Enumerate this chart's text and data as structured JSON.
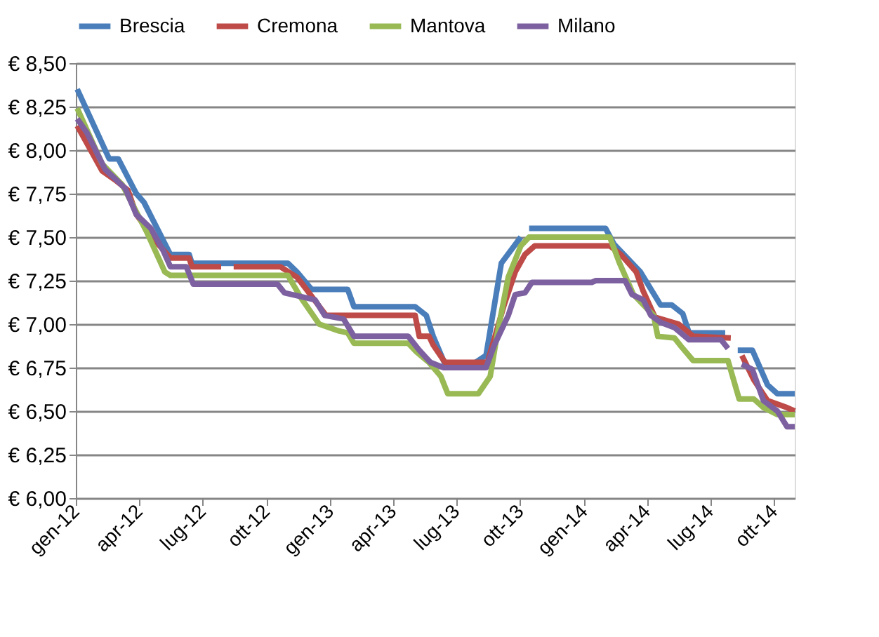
{
  "chart_data": {
    "type": "line",
    "legend": "top",
    "grid": "y",
    "line_style": "solid",
    "marker": "none",
    "xlim": [
      "2012-01-01",
      "2014-10-31"
    ],
    "xticks": [
      {
        "value": "2012-01-01",
        "label": "gen-12"
      },
      {
        "value": "2012-04-01",
        "label": "apr-12"
      },
      {
        "value": "2012-07-01",
        "label": "lug-12"
      },
      {
        "value": "2012-10-01",
        "label": "ott-12"
      },
      {
        "value": "2013-01-01",
        "label": "gen-13"
      },
      {
        "value": "2013-04-01",
        "label": "apr-13"
      },
      {
        "value": "2013-07-01",
        "label": "lug-13"
      },
      {
        "value": "2013-10-01",
        "label": "ott-13"
      },
      {
        "value": "2014-01-01",
        "label": "gen-14"
      },
      {
        "value": "2014-04-01",
        "label": "apr-14"
      },
      {
        "value": "2014-07-01",
        "label": "lug-14"
      },
      {
        "value": "2014-10-01",
        "label": "ott-14"
      }
    ],
    "ylim": [
      6.0,
      8.5
    ],
    "yticks": [
      {
        "value": 6.0,
        "label": "€ 6,00"
      },
      {
        "value": 6.25,
        "label": "€ 6,25"
      },
      {
        "value": 6.5,
        "label": "€ 6,50"
      },
      {
        "value": 6.75,
        "label": "€ 6,75"
      },
      {
        "value": 7.0,
        "label": "€ 7,00"
      },
      {
        "value": 7.25,
        "label": "€ 7,25"
      },
      {
        "value": 7.5,
        "label": "€ 7,50"
      },
      {
        "value": 7.75,
        "label": "€ 7,75"
      },
      {
        "value": 8.0,
        "label": "€ 8,00"
      },
      {
        "value": 8.25,
        "label": "€ 8,25"
      },
      {
        "value": 8.5,
        "label": "€ 8,50"
      }
    ],
    "series": [
      {
        "name": "Brescia",
        "color": "#4a7ebb",
        "x": [
          "2012-01-03",
          "2012-02-18",
          "2012-03-02",
          "2012-03-28",
          "2012-04-08",
          "2012-05-16",
          "2012-06-12",
          "2012-06-16",
          "2012-11-01",
          "2012-11-14",
          "2012-12-05",
          "2013-01-26",
          "2013-02-04",
          "2013-05-03",
          "2013-05-19",
          "2013-05-29",
          "2013-06-15",
          "2013-07-25",
          "2013-08-13",
          "2013-09-04",
          "2013-10-02",
          "2013-10-08",
          "2013-10-14",
          "2014-02-01",
          "2014-02-13",
          "2014-03-23",
          "2014-04-21",
          "2014-05-07",
          "2014-05-23",
          "2014-06-01",
          "2014-07-23",
          "2014-08-01",
          "2014-08-10",
          "2014-08-31",
          "2014-09-22",
          "2014-10-06",
          "2014-10-31"
        ],
        "values": [
          8.35,
          7.95,
          7.95,
          7.75,
          7.7,
          7.4,
          7.4,
          7.35,
          7.35,
          7.3,
          7.2,
          7.2,
          7.1,
          7.1,
          7.05,
          6.93,
          6.77,
          6.77,
          6.82,
          7.35,
          7.5,
          null,
          7.55,
          7.55,
          7.46,
          7.3,
          7.11,
          7.11,
          7.06,
          6.95,
          6.95,
          null,
          6.85,
          6.85,
          6.65,
          6.6,
          6.6
        ]
      },
      {
        "name": "Cremona",
        "color": "#be4b48",
        "x": [
          "2012-01-03",
          "2012-02-08",
          "2012-02-26",
          "2012-03-16",
          "2012-03-28",
          "2012-04-26",
          "2012-05-16",
          "2012-06-12",
          "2012-06-16",
          "2012-07-28",
          "2012-08-05",
          "2012-08-15",
          "2012-10-21",
          "2012-11-14",
          "2012-11-20",
          "2012-12-26",
          "2013-05-03",
          "2013-05-09",
          "2013-05-23",
          "2013-05-29",
          "2013-06-15",
          "2013-08-15",
          "2013-08-23",
          "2013-09-08",
          "2013-09-24",
          "2013-10-08",
          "2013-10-22",
          "2014-02-07",
          "2014-02-23",
          "2014-03-17",
          "2014-03-27",
          "2014-04-13",
          "2014-05-17",
          "2014-06-07",
          "2014-07-31",
          "2014-08-08",
          "2014-08-16",
          "2014-09-02",
          "2014-09-22",
          "2014-10-20",
          "2014-10-31"
        ],
        "values": [
          8.14,
          7.88,
          7.83,
          7.77,
          7.63,
          7.47,
          7.38,
          7.38,
          7.33,
          7.33,
          null,
          7.33,
          7.33,
          7.27,
          7.24,
          7.05,
          7.05,
          6.93,
          6.93,
          6.88,
          6.78,
          6.78,
          6.89,
          7.11,
          7.3,
          7.4,
          7.45,
          7.45,
          7.4,
          7.3,
          7.19,
          7.04,
          7.0,
          6.93,
          6.92,
          null,
          6.82,
          6.68,
          6.56,
          6.52,
          6.5
        ]
      },
      {
        "name": "Mantova",
        "color": "#98b954",
        "x": [
          "2012-01-03",
          "2012-02-08",
          "2012-03-08",
          "2012-04-12",
          "2012-05-08",
          "2012-05-16",
          "2012-11-01",
          "2012-11-20",
          "2012-12-16",
          "2013-01-14",
          "2013-01-26",
          "2013-02-04",
          "2013-04-23",
          "2013-05-05",
          "2013-05-23",
          "2013-06-09",
          "2013-06-19",
          "2013-08-02",
          "2013-08-19",
          "2013-08-29",
          "2013-09-14",
          "2013-10-02",
          "2013-10-14",
          "2014-02-07",
          "2014-02-21",
          "2014-03-13",
          "2014-04-11",
          "2014-04-17",
          "2014-05-11",
          "2014-05-21",
          "2014-06-07",
          "2014-07-27",
          "2014-08-12",
          "2014-09-02",
          "2014-09-16",
          "2014-10-06",
          "2014-10-31"
        ],
        "values": [
          8.24,
          7.92,
          7.8,
          7.53,
          7.3,
          7.28,
          7.28,
          7.15,
          7.0,
          6.96,
          6.95,
          6.89,
          6.89,
          6.84,
          6.78,
          6.7,
          6.6,
          6.6,
          6.7,
          6.94,
          7.27,
          7.45,
          7.5,
          7.5,
          7.35,
          7.17,
          7.05,
          6.93,
          6.92,
          6.87,
          6.79,
          6.79,
          6.57,
          6.57,
          6.52,
          6.48,
          6.48
        ]
      },
      {
        "name": "Milano",
        "color": "#7d60a0",
        "x": [
          "2012-01-03",
          "2012-01-17",
          "2012-02-12",
          "2012-02-28",
          "2012-03-12",
          "2012-03-28",
          "2012-04-18",
          "2012-05-06",
          "2012-05-16",
          "2012-06-08",
          "2012-06-18",
          "2012-10-17",
          "2012-10-27",
          "2012-12-10",
          "2012-12-24",
          "2013-01-20",
          "2013-02-04",
          "2013-04-23",
          "2013-05-09",
          "2013-05-25",
          "2013-06-13",
          "2013-08-13",
          "2013-08-25",
          "2013-09-14",
          "2013-09-24",
          "2013-10-08",
          "2013-10-18",
          "2014-01-12",
          "2014-01-18",
          "2014-03-01",
          "2014-03-11",
          "2014-03-27",
          "2014-04-07",
          "2014-04-21",
          "2014-05-11",
          "2014-06-01",
          "2014-07-17",
          "2014-07-27",
          "2014-08-05",
          "2014-08-16",
          "2014-08-31",
          "2014-09-16",
          "2014-10-06",
          "2014-10-20",
          "2014-10-31"
        ],
        "values": [
          8.18,
          8.1,
          7.89,
          7.83,
          7.78,
          7.63,
          7.55,
          7.42,
          7.33,
          7.33,
          7.23,
          7.23,
          7.18,
          7.14,
          7.05,
          7.03,
          6.93,
          6.93,
          6.85,
          6.78,
          6.75,
          6.75,
          6.88,
          7.05,
          7.17,
          7.18,
          7.24,
          7.24,
          7.25,
          7.25,
          7.17,
          7.14,
          7.05,
          7.01,
          6.98,
          6.91,
          6.91,
          6.86,
          null,
          6.77,
          6.74,
          6.56,
          6.5,
          6.41,
          6.41
        ]
      }
    ]
  }
}
